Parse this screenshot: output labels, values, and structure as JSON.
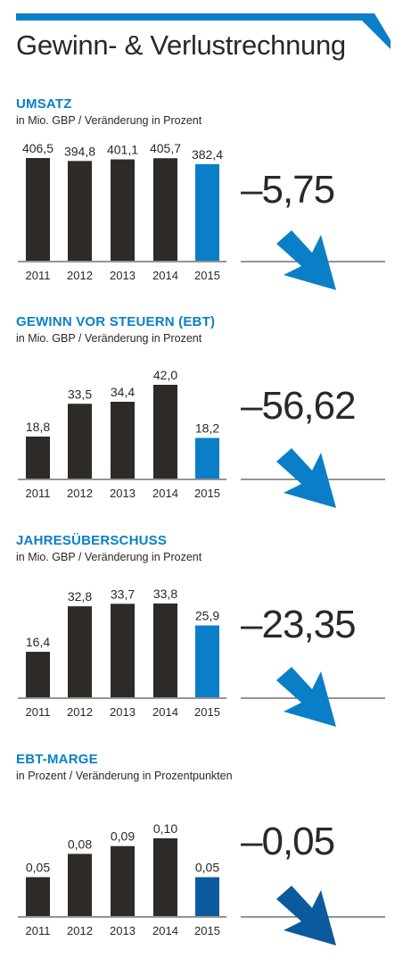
{
  "title": "Gewinn- & Verlustrechnung",
  "colors": {
    "accent": "#0a7fc7",
    "accent_dark": "#0b5a9e",
    "bar": "#2e2a27",
    "text": "#2b2825"
  },
  "chart_data": [
    {
      "type": "bar",
      "title": "UMSATZ",
      "subtitle": "in Mio. GBP / Veränderung in Prozent",
      "categories": [
        "2011",
        "2012",
        "2013",
        "2014",
        "2015"
      ],
      "values": [
        406.5,
        394.8,
        401.1,
        405.7,
        382.4
      ],
      "value_labels": [
        "406,5",
        "394,8",
        "401,1",
        "405,7",
        "382,4"
      ],
      "change": "–5,75",
      "change_direction": "down",
      "highlight_color": "#0a7fc7"
    },
    {
      "type": "bar",
      "title": "GEWINN VOR STEUERN (EBT)",
      "subtitle": "in Mio. GBP / Veränderung in Prozent",
      "categories": [
        "2011",
        "2012",
        "2013",
        "2014",
        "2015"
      ],
      "values": [
        18.8,
        33.5,
        34.4,
        42.0,
        18.2
      ],
      "value_labels": [
        "18,8",
        "33,5",
        "34,4",
        "42,0",
        "18,2"
      ],
      "change": "–56,62",
      "change_direction": "down",
      "highlight_color": "#0a7fc7"
    },
    {
      "type": "bar",
      "title": "JAHRESÜBERSCHUSS",
      "subtitle": "in Mio. GBP / Veränderung in Prozent",
      "categories": [
        "2011",
        "2012",
        "2013",
        "2014",
        "2015"
      ],
      "values": [
        16.4,
        32.8,
        33.7,
        33.8,
        25.9
      ],
      "value_labels": [
        "16,4",
        "32,8",
        "33,7",
        "33,8",
        "25,9"
      ],
      "change": "–23,35",
      "change_direction": "down",
      "highlight_color": "#0a7fc7"
    },
    {
      "type": "bar",
      "title": "EBT-MARGE",
      "subtitle": "in Prozent / Veränderung in Prozentpunkten",
      "categories": [
        "2011",
        "2012",
        "2013",
        "2014",
        "2015"
      ],
      "values": [
        0.05,
        0.08,
        0.09,
        0.1,
        0.05
      ],
      "value_labels": [
        "0,05",
        "0,08",
        "0,09",
        "0,10",
        "0,05"
      ],
      "change": "–0,05",
      "change_direction": "down",
      "highlight_color": "#0b5a9e"
    }
  ]
}
